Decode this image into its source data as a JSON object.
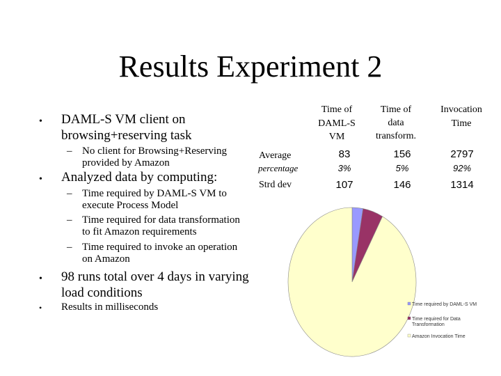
{
  "slide": {
    "title": "Results Experiment 2"
  },
  "bullets": [
    {
      "marker": "•",
      "text_lines": [
        "DAML-S VM client on",
        "browsing+reserving task"
      ]
    },
    {
      "marker": "–",
      "text_lines": [
        "No client for Browsing+Reserving",
        "provided by Amazon"
      ]
    },
    {
      "marker": "•",
      "text_lines": [
        "Analyzed data by computing:"
      ]
    },
    {
      "marker": "–",
      "text_lines": [
        "Time required by DAML-S VM to",
        "execute Process Model"
      ]
    },
    {
      "marker": "–",
      "text_lines": [
        "Time required for data transformation",
        "to fit Amazon requirements"
      ]
    },
    {
      "marker": "–",
      "text_lines": [
        "Time required to invoke an operation",
        "on Amazon"
      ]
    },
    {
      "marker": "•",
      "text_lines": [
        "98 runs total over 4 days in varying",
        "load conditions"
      ]
    },
    {
      "marker": "•",
      "text_lines": [
        "Results in milliseconds"
      ]
    }
  ],
  "table": {
    "headers": [
      [
        "Time of",
        "DAML-S",
        "VM"
      ],
      [
        "Time of",
        "data",
        "transform."
      ],
      [
        "Invocation",
        "Time"
      ]
    ],
    "rows": [
      {
        "label": "Average",
        "values": [
          "83",
          "156",
          "2797"
        ]
      },
      {
        "label": "percentage",
        "values": [
          "3%",
          "5%",
          "92%"
        ]
      },
      {
        "label": "Strd dev",
        "values": [
          "107",
          "146",
          "1314"
        ]
      }
    ]
  },
  "chart_data": {
    "type": "pie",
    "categories": [
      "Time required by DAML-S VM",
      "Time required for Data Transformation",
      "Amazon Invocation Time"
    ],
    "values": [
      83,
      156,
      2797
    ],
    "colors": [
      "#9999ff",
      "#993366",
      "#ffffcc"
    ],
    "legend_lines": [
      [
        "Time required by DAML-S VM"
      ],
      [
        "Time required for Data",
        "Transformation"
      ],
      [
        "Amazon Invocation Time"
      ]
    ],
    "legend_placement": "bottom-right"
  }
}
